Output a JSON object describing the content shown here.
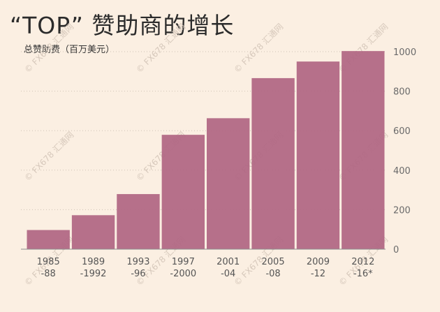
{
  "chart_data": {
    "type": "bar",
    "title": "“TOP”  赞助商的增长",
    "ylabel": "总赞助费（百万美元）",
    "xlabel": "",
    "categories": [
      "1985\n-88",
      "1989\n-1992",
      "1993\n-96",
      "1997\n-2000",
      "2001\n-04",
      "2005\n-08",
      "2009\n-12",
      "2012\n-16*"
    ],
    "values": [
      97,
      172,
      279,
      579,
      663,
      866,
      950,
      1003
    ],
    "ylim": [
      0,
      1000
    ],
    "yticks": [
      0,
      200,
      400,
      600,
      800,
      1000
    ],
    "grid": true,
    "bar_color": "#b06683",
    "background": "#fbefe2"
  },
  "watermark": {
    "text": "© FX678 汇通网"
  }
}
